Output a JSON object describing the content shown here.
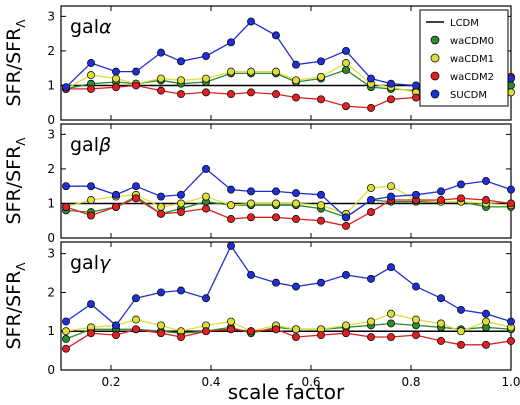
{
  "chart_data": {
    "type": "line",
    "xlabel": "scale factor",
    "x_ticks": [
      "0.2",
      "0.4",
      "0.6",
      "0.8",
      "1.0"
    ],
    "xlim": [
      0.1,
      1.0
    ],
    "ylim": [
      0,
      3.3
    ],
    "y_ticks": [
      "0",
      "1",
      "2",
      "3"
    ],
    "series_styles": [
      {
        "name": "LCDM",
        "color": "#000000",
        "marker": "none"
      },
      {
        "name": "waCDM0",
        "color": "#2e8b2e",
        "marker": "circle"
      },
      {
        "name": "waCDM1",
        "color": "#dede3a",
        "marker": "circle"
      },
      {
        "name": "waCDM2",
        "color": "#e02020",
        "marker": "circle"
      },
      {
        "name": "SUCDM",
        "color": "#1f2fd6",
        "marker": "circle"
      }
    ],
    "legend_position": "top-right",
    "x": [
      0.11,
      0.16,
      0.21,
      0.25,
      0.3,
      0.34,
      0.39,
      0.44,
      0.48,
      0.53,
      0.57,
      0.62,
      0.67,
      0.72,
      0.76,
      0.81,
      0.86,
      0.9,
      0.95,
      1.0
    ],
    "panels": [
      {
        "label_base": "gal",
        "label_greek": "α",
        "ylabel": "SFR/SFR",
        "ylabel_sub": "Λ",
        "show_legend": true,
        "reference": 1.0,
        "series": [
          {
            "name": "waCDM0",
            "values": [
              0.9,
              1.05,
              1.1,
              1.05,
              1.15,
              1.05,
              1.1,
              1.35,
              1.35,
              1.35,
              1.1,
              1.2,
              1.45,
              0.95,
              0.9,
              0.85,
              0.75,
              0.75,
              0.8,
              1.0
            ]
          },
          {
            "name": "waCDM1",
            "values": [
              0.9,
              1.3,
              1.2,
              1.05,
              1.2,
              1.15,
              1.2,
              1.4,
              1.4,
              1.4,
              1.15,
              1.25,
              1.65,
              1.05,
              0.95,
              0.8,
              0.75,
              0.8,
              0.65,
              0.8
            ]
          },
          {
            "name": "waCDM2",
            "values": [
              0.9,
              0.9,
              0.95,
              1.0,
              0.85,
              0.75,
              0.8,
              0.75,
              0.8,
              0.75,
              0.65,
              0.6,
              0.4,
              0.35,
              0.6,
              0.65,
              0.7,
              0.65,
              0.75,
              1.25
            ]
          },
          {
            "name": "SUCDM",
            "values": [
              0.95,
              1.65,
              1.4,
              1.4,
              1.95,
              1.7,
              1.85,
              2.25,
              2.85,
              2.45,
              1.6,
              1.7,
              2.0,
              1.2,
              1.05,
              1.0,
              0.9,
              0.9,
              0.9,
              1.2
            ]
          }
        ]
      },
      {
        "label_base": "gal",
        "label_greek": "β",
        "ylabel": "SFR/SFR",
        "ylabel_sub": "Λ",
        "show_legend": false,
        "reference": 1.0,
        "series": [
          {
            "name": "waCDM0",
            "values": [
              0.8,
              0.75,
              0.9,
              1.2,
              0.7,
              0.85,
              1.05,
              0.95,
              0.95,
              0.95,
              0.95,
              0.85,
              0.6,
              1.1,
              1.05,
              1.05,
              1.05,
              1.05,
              0.9,
              0.9
            ]
          },
          {
            "name": "waCDM1",
            "values": [
              0.9,
              1.1,
              1.2,
              1.25,
              0.9,
              1.0,
              1.2,
              0.95,
              1.0,
              1.0,
              1.0,
              0.95,
              0.7,
              1.45,
              1.5,
              1.1,
              1.05,
              1.05,
              1.0,
              0.95
            ]
          },
          {
            "name": "waCDM2",
            "values": [
              0.9,
              0.65,
              0.9,
              1.15,
              0.7,
              0.75,
              0.85,
              0.55,
              0.6,
              0.6,
              0.55,
              0.5,
              0.35,
              0.75,
              1.1,
              1.1,
              1.1,
              1.15,
              1.1,
              1.0
            ]
          },
          {
            "name": "SUCDM",
            "values": [
              1.5,
              1.5,
              1.25,
              1.5,
              1.2,
              1.25,
              2.0,
              1.4,
              1.35,
              1.35,
              1.3,
              1.25,
              0.6,
              1.1,
              1.2,
              1.25,
              1.35,
              1.55,
              1.65,
              1.4
            ]
          }
        ]
      },
      {
        "label_base": "gal",
        "label_greek": "γ",
        "ylabel": "SFR/SFR",
        "ylabel_sub": "Λ",
        "show_legend": false,
        "reference": 1.0,
        "series": [
          {
            "name": "waCDM0",
            "values": [
              0.8,
              1.05,
              1.05,
              1.05,
              1.0,
              0.95,
              1.0,
              1.1,
              0.95,
              1.1,
              1.05,
              1.05,
              1.1,
              1.15,
              1.2,
              1.15,
              1.1,
              1.05,
              1.1,
              1.05
            ]
          },
          {
            "name": "waCDM1",
            "values": [
              1.0,
              1.1,
              1.15,
              1.3,
              1.15,
              1.0,
              1.15,
              1.25,
              1.0,
              1.15,
              1.05,
              1.05,
              1.15,
              1.25,
              1.45,
              1.3,
              1.2,
              1.0,
              1.25,
              1.1
            ]
          },
          {
            "name": "waCDM2",
            "values": [
              0.55,
              0.95,
              0.9,
              1.05,
              0.95,
              0.85,
              1.0,
              1.05,
              1.0,
              1.05,
              0.85,
              0.9,
              0.95,
              0.85,
              0.85,
              0.9,
              0.75,
              0.65,
              0.65,
              0.75
            ]
          },
          {
            "name": "SUCDM",
            "values": [
              1.25,
              1.7,
              1.15,
              1.85,
              2.0,
              2.05,
              1.85,
              3.2,
              2.45,
              2.25,
              2.15,
              2.25,
              2.45,
              2.35,
              2.65,
              2.15,
              1.85,
              1.55,
              1.45,
              1.25
            ]
          }
        ]
      }
    ]
  }
}
